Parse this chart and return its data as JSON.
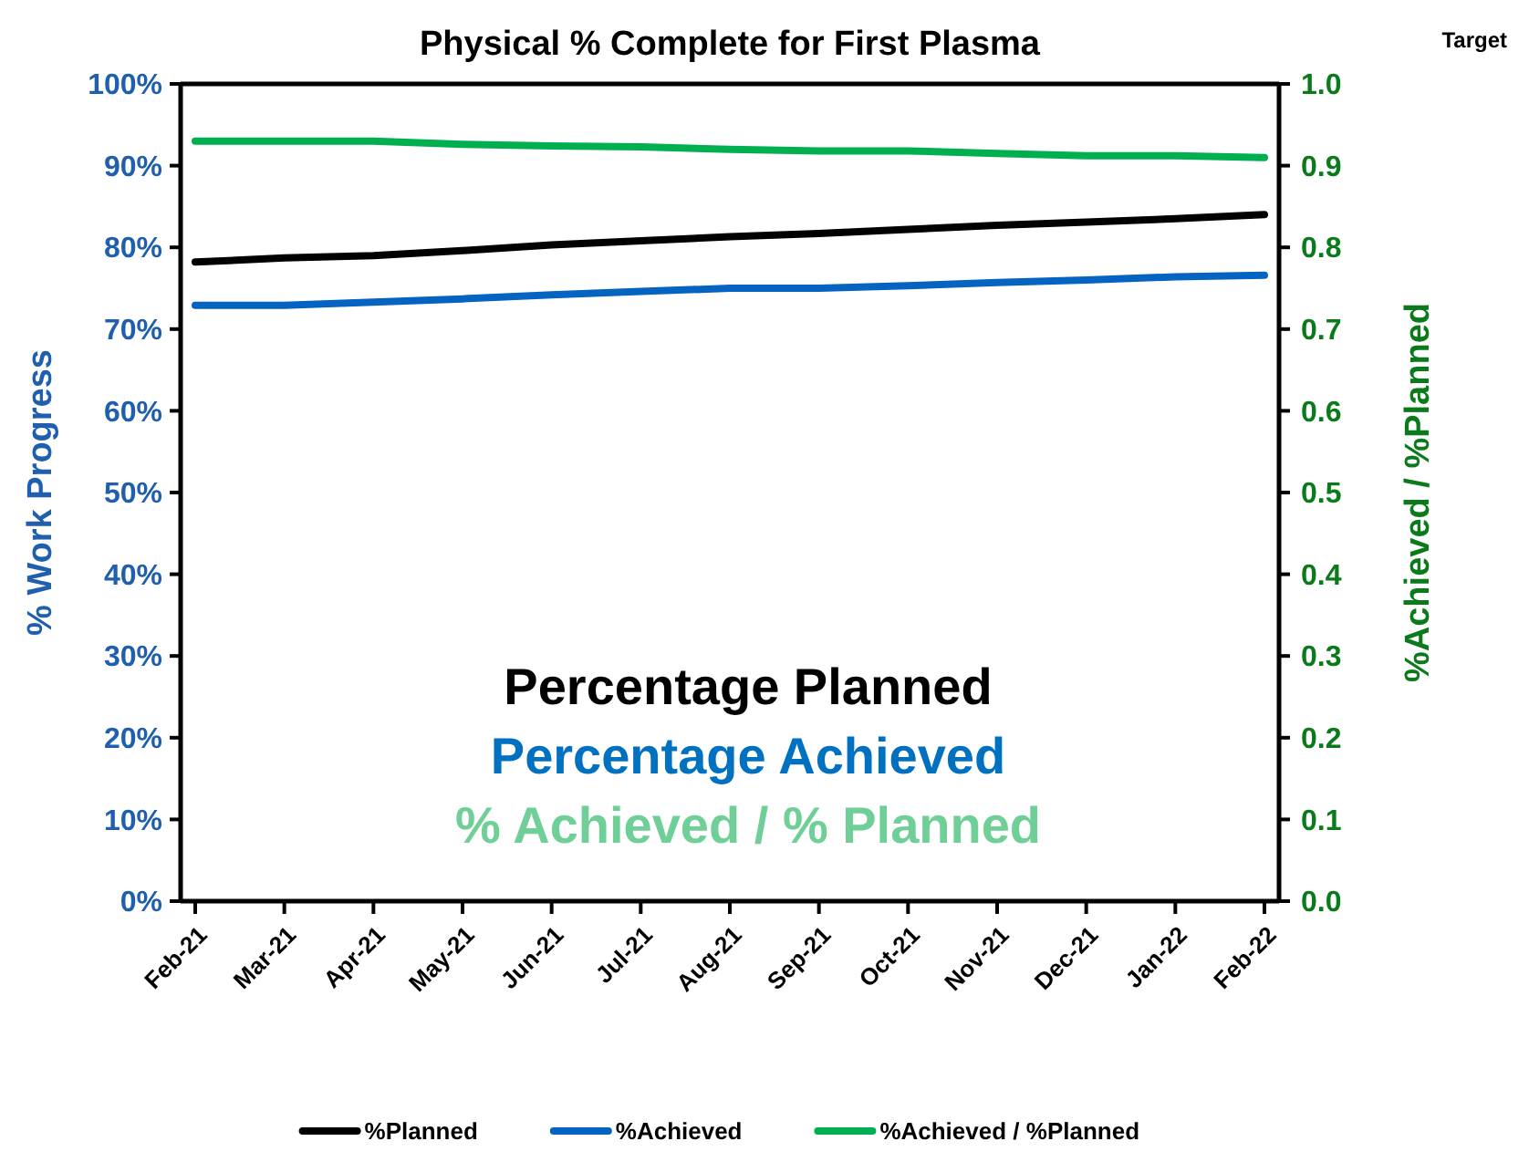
{
  "chart_data": {
    "type": "line",
    "title": "Physical % Complete for First Plasma",
    "ylabel": "% Work Progress",
    "y2label": "%Achieved / %Planned",
    "categories": [
      "Feb-21",
      "Mar-21",
      "Apr-21",
      "May-21",
      "Jun-21",
      "Jul-21",
      "Aug-21",
      "Sep-21",
      "Oct-21",
      "Nov-21",
      "Dec-21",
      "Jan-22",
      "Feb-22"
    ],
    "series": [
      {
        "name": "%Planned",
        "color": "#000000",
        "values": [
          78.2,
          78.7,
          79.0,
          79.6,
          80.3,
          80.8,
          81.3,
          81.7,
          82.2,
          82.7,
          83.1,
          83.5,
          84.0
        ]
      },
      {
        "name": "%Achieved",
        "color": "#0563c1",
        "values": [
          72.9,
          72.9,
          73.3,
          73.7,
          74.2,
          74.6,
          75.0,
          75.0,
          75.3,
          75.7,
          76.0,
          76.4,
          76.6
        ]
      },
      {
        "name": "%Achieved / %Planned",
        "color": "#00b050",
        "axis": "y2",
        "values": [
          0.93,
          0.93,
          0.93,
          0.926,
          0.924,
          0.923,
          0.92,
          0.918,
          0.918,
          0.915,
          0.912,
          0.912,
          0.91
        ]
      }
    ],
    "ylim": [
      0,
      100
    ],
    "yticks": [
      {
        "value": 0,
        "label": "0%"
      },
      {
        "value": 10,
        "label": "10%"
      },
      {
        "value": 20,
        "label": "20%"
      },
      {
        "value": 30,
        "label": "30%"
      },
      {
        "value": 40,
        "label": "40%"
      },
      {
        "value": 50,
        "label": "50%"
      },
      {
        "value": 60,
        "label": "60%"
      },
      {
        "value": 70,
        "label": "70%"
      },
      {
        "value": 80,
        "label": "80%"
      },
      {
        "value": 90,
        "label": "90%"
      },
      {
        "value": 100,
        "label": "100%"
      }
    ],
    "y2lim": [
      0,
      1
    ],
    "y2ticks": [
      {
        "value": 0,
        "label": "0.0"
      },
      0.1,
      0.2,
      0.3,
      0.4,
      0.5,
      0.6,
      0.7,
      0.8,
      0.9,
      {
        "value": 1,
        "label": "1.0"
      }
    ],
    "annotations": [
      "Percentage Planned",
      "Percentage Achieved",
      "% Achieved / % Planned",
      "Target"
    ],
    "legend": "bottom",
    "grid": false,
    "marker": "none",
    "line_style": "solid"
  }
}
